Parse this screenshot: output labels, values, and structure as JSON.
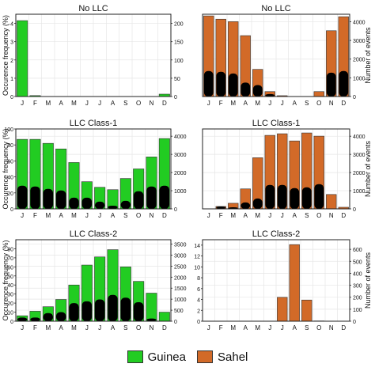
{
  "chart_data": [
    {
      "type": "bar",
      "title": "No LLC",
      "region": "Guinea",
      "categories": [
        "J",
        "F",
        "M",
        "A",
        "M",
        "J",
        "J",
        "A",
        "S",
        "O",
        "N",
        "D"
      ],
      "ylabel": "Occurence frequency (%)",
      "y2label": "",
      "ylim": [
        0,
        4.5
      ],
      "yticks": [
        0,
        1,
        2,
        3,
        4
      ],
      "y2lim": [
        0,
        225
      ],
      "y2ticks": [
        0,
        50,
        100,
        150,
        200
      ],
      "series": [
        {
          "values": [
            4.15,
            0.05,
            0.0,
            0.0,
            0.0,
            0.0,
            0.0,
            0.0,
            0.0,
            0.0,
            0.0,
            0.13
          ],
          "color": "#22cc22"
        },
        {
          "values": [
            0,
            0,
            0,
            0,
            0,
            0,
            0,
            0,
            0,
            0,
            0,
            0
          ],
          "color": "#000000"
        }
      ]
    },
    {
      "type": "bar",
      "title": "No LLC",
      "region": "Sahel",
      "categories": [
        "J",
        "F",
        "M",
        "A",
        "M",
        "J",
        "J",
        "A",
        "S",
        "O",
        "N",
        "D"
      ],
      "ylabel": "",
      "y2label": "Number of events",
      "ylim": [
        0,
        100
      ],
      "yticks": [],
      "y2lim": [
        0,
        4400
      ],
      "y2ticks": [
        0,
        1000,
        2000,
        3000,
        4000
      ],
      "series": [
        {
          "values": [
            98,
            94,
            91,
            74,
            33,
            6,
            1,
            0,
            0,
            6,
            80,
            97
          ],
          "color": "#d26a28"
        },
        {
          "values": [
            31,
            30,
            28,
            17,
            14,
            3,
            0,
            0,
            0,
            0,
            29,
            31
          ],
          "color": "#000000"
        }
      ]
    },
    {
      "type": "bar",
      "title": "LLC Class-1",
      "region": "Guinea",
      "categories": [
        "J",
        "F",
        "M",
        "A",
        "M",
        "J",
        "J",
        "A",
        "S",
        "O",
        "N",
        "D"
      ],
      "ylabel": "Occurence frequency (%)",
      "y2label": "",
      "ylim": [
        0,
        100
      ],
      "yticks": [
        0,
        20,
        40,
        60,
        80,
        100
      ],
      "y2lim": [
        0,
        4400
      ],
      "y2ticks": [
        0,
        1000,
        2000,
        3000,
        4000
      ],
      "series": [
        {
          "values": [
            87,
            87,
            82,
            75,
            58,
            34,
            27,
            24,
            38,
            50,
            65,
            88
          ],
          "color": "#22cc22"
        },
        {
          "values": [
            29,
            28,
            25,
            23,
            14,
            14,
            9,
            4,
            10,
            22,
            28,
            29
          ],
          "color": "#000000"
        }
      ]
    },
    {
      "type": "bar",
      "title": "LLC Class-1",
      "region": "Sahel",
      "categories": [
        "J",
        "F",
        "M",
        "A",
        "M",
        "J",
        "J",
        "A",
        "S",
        "O",
        "N",
        "D"
      ],
      "ylabel": "",
      "y2label": "Number of events",
      "ylim": [
        0,
        100
      ],
      "yticks": [],
      "y2lim": [
        0,
        4400
      ],
      "y2ticks": [
        0,
        1000,
        2000,
        3000,
        4000
      ],
      "series": [
        {
          "values": [
            0,
            3,
            7,
            25,
            64,
            92,
            94,
            85,
            95,
            91,
            18,
            2
          ],
          "color": "#d26a28"
        },
        {
          "values": [
            0,
            3,
            2,
            8,
            13,
            30,
            30,
            26,
            27,
            31,
            0,
            0
          ],
          "color": "#000000"
        }
      ]
    },
    {
      "type": "bar",
      "title": "LLC Class-2",
      "region": "Guinea",
      "categories": [
        "J",
        "F",
        "M",
        "A",
        "M",
        "J",
        "J",
        "A",
        "S",
        "O",
        "N",
        "D"
      ],
      "ylabel": "Occurence frequency (%)",
      "y2label": "",
      "ylim": [
        0,
        90
      ],
      "yticks": [
        0,
        10,
        20,
        30,
        40,
        50,
        60,
        70,
        80
      ],
      "y2lim": [
        0,
        3700
      ],
      "y2ticks": [
        0,
        500,
        1000,
        1500,
        2000,
        2500,
        3000,
        3500
      ],
      "series": [
        {
          "values": [
            6,
            11,
            16,
            24,
            40,
            62,
            71,
            79,
            60,
            44,
            31,
            10
          ],
          "color": "#22cc22"
        },
        {
          "values": [
            4,
            4,
            9,
            10,
            20,
            22,
            24,
            29,
            26,
            21,
            3,
            0
          ],
          "color": "#000000"
        }
      ]
    },
    {
      "type": "bar",
      "title": "LLC Class-2",
      "region": "Sahel",
      "categories": [
        "J",
        "F",
        "M",
        "A",
        "M",
        "J",
        "J",
        "A",
        "S",
        "O",
        "N",
        "D"
      ],
      "ylabel": "",
      "y2label": "Number of events",
      "ylim": [
        0,
        15
      ],
      "yticks": [
        0,
        2,
        4,
        6,
        8,
        10,
        12,
        14
      ],
      "y2lim": [
        0,
        680
      ],
      "y2ticks": [
        0,
        100,
        200,
        300,
        400,
        500,
        600
      ],
      "series": [
        {
          "values": [
            0,
            0,
            0,
            0,
            0,
            0,
            4.4,
            14.1,
            3.9,
            0.05,
            0,
            0
          ],
          "color": "#d26a28"
        },
        {
          "values": [
            0,
            0,
            0,
            0,
            0,
            0,
            0,
            0,
            0,
            0,
            0,
            0
          ],
          "color": "#000000"
        }
      ]
    }
  ],
  "legend": {
    "items": [
      {
        "label": "Guinea",
        "color": "#22cc22"
      },
      {
        "label": "Sahel",
        "color": "#d26a28"
      }
    ]
  }
}
